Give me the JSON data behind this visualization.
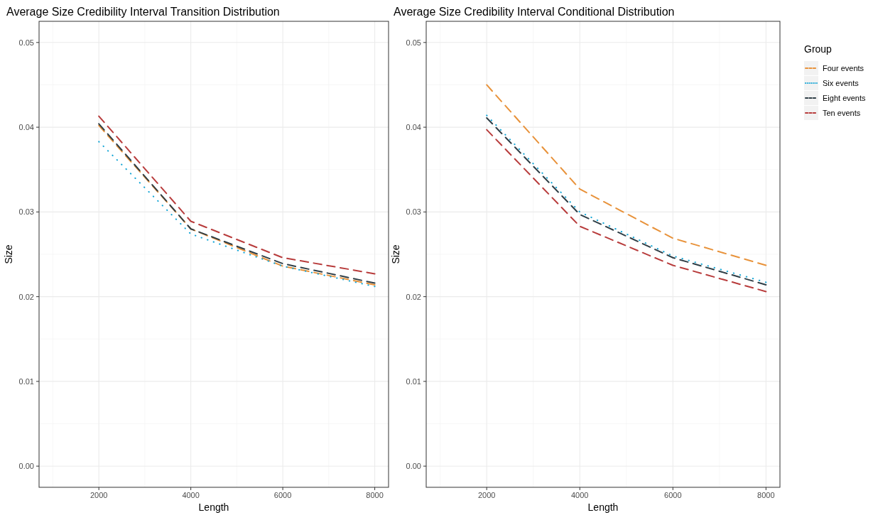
{
  "chart_data": [
    {
      "type": "line",
      "title": "Average Size Credibility Interval Transition Distribution",
      "xlabel": "Length",
      "ylabel": "Size",
      "x": [
        2000,
        4000,
        6000,
        8000
      ],
      "xlim": [
        700,
        8300
      ],
      "xticks": [
        2000,
        4000,
        6000,
        8000
      ],
      "ylim": [
        -0.0025,
        0.0525
      ],
      "yticks": [
        {
          "value": 0,
          "label": "0.00"
        },
        {
          "value": 0.01,
          "label": "0.01"
        },
        {
          "value": 0.02,
          "label": "0.02"
        },
        {
          "value": 0.03,
          "label": "0.03"
        },
        {
          "value": 0.04,
          "label": "0.04"
        },
        {
          "value": 0.05,
          "label": "0.05"
        }
      ],
      "grid": true,
      "legend": false,
      "marker": "none",
      "series": [
        {
          "color": "#e8923a",
          "line_style": "dashed",
          "values": [
            0.0402,
            0.028,
            0.0236,
            0.0214
          ]
        },
        {
          "color": "#16a6d6",
          "line_style": "dotted",
          "values": [
            0.0383,
            0.0274,
            0.0236,
            0.0212
          ]
        },
        {
          "color": "#2f3e46",
          "line_style": "dashed",
          "values": [
            0.0404,
            0.028,
            0.0239,
            0.0216
          ]
        },
        {
          "color": "#b83c3c",
          "line_style": "dashed",
          "values": [
            0.0413,
            0.0289,
            0.0246,
            0.0227
          ]
        }
      ]
    },
    {
      "type": "line",
      "title": "Average Size Credibility Interval Conditional Distribution",
      "xlabel": "Length",
      "ylabel": "Size",
      "legend_title": "Group",
      "x": [
        2000,
        4000,
        6000,
        8000
      ],
      "xlim": [
        700,
        8300
      ],
      "xticks": [
        2000,
        4000,
        6000,
        8000
      ],
      "ylim": [
        -0.0025,
        0.0525
      ],
      "yticks": [
        {
          "value": 0,
          "label": "0.00"
        },
        {
          "value": 0.01,
          "label": "0.01"
        },
        {
          "value": 0.02,
          "label": "0.02"
        },
        {
          "value": 0.03,
          "label": "0.03"
        },
        {
          "value": 0.04,
          "label": "0.04"
        },
        {
          "value": 0.05,
          "label": "0.05"
        }
      ],
      "grid": true,
      "legend": "right",
      "marker": "none",
      "series": [
        {
          "name": "Four events",
          "color": "#e8923a",
          "line_style": "dashed",
          "values": [
            0.045,
            0.0327,
            0.0269,
            0.0237
          ]
        },
        {
          "name": "Six events",
          "color": "#16a6d6",
          "line_style": "dotted",
          "values": [
            0.0414,
            0.03,
            0.0248,
            0.0217
          ]
        },
        {
          "name": "Eight events",
          "color": "#2f3e46",
          "line_style": "dashed",
          "values": [
            0.0411,
            0.0297,
            0.0246,
            0.0214
          ]
        },
        {
          "name": "Ten events",
          "color": "#b83c3c",
          "line_style": "dashed",
          "values": [
            0.0397,
            0.0283,
            0.0237,
            0.0206
          ]
        }
      ]
    }
  ]
}
